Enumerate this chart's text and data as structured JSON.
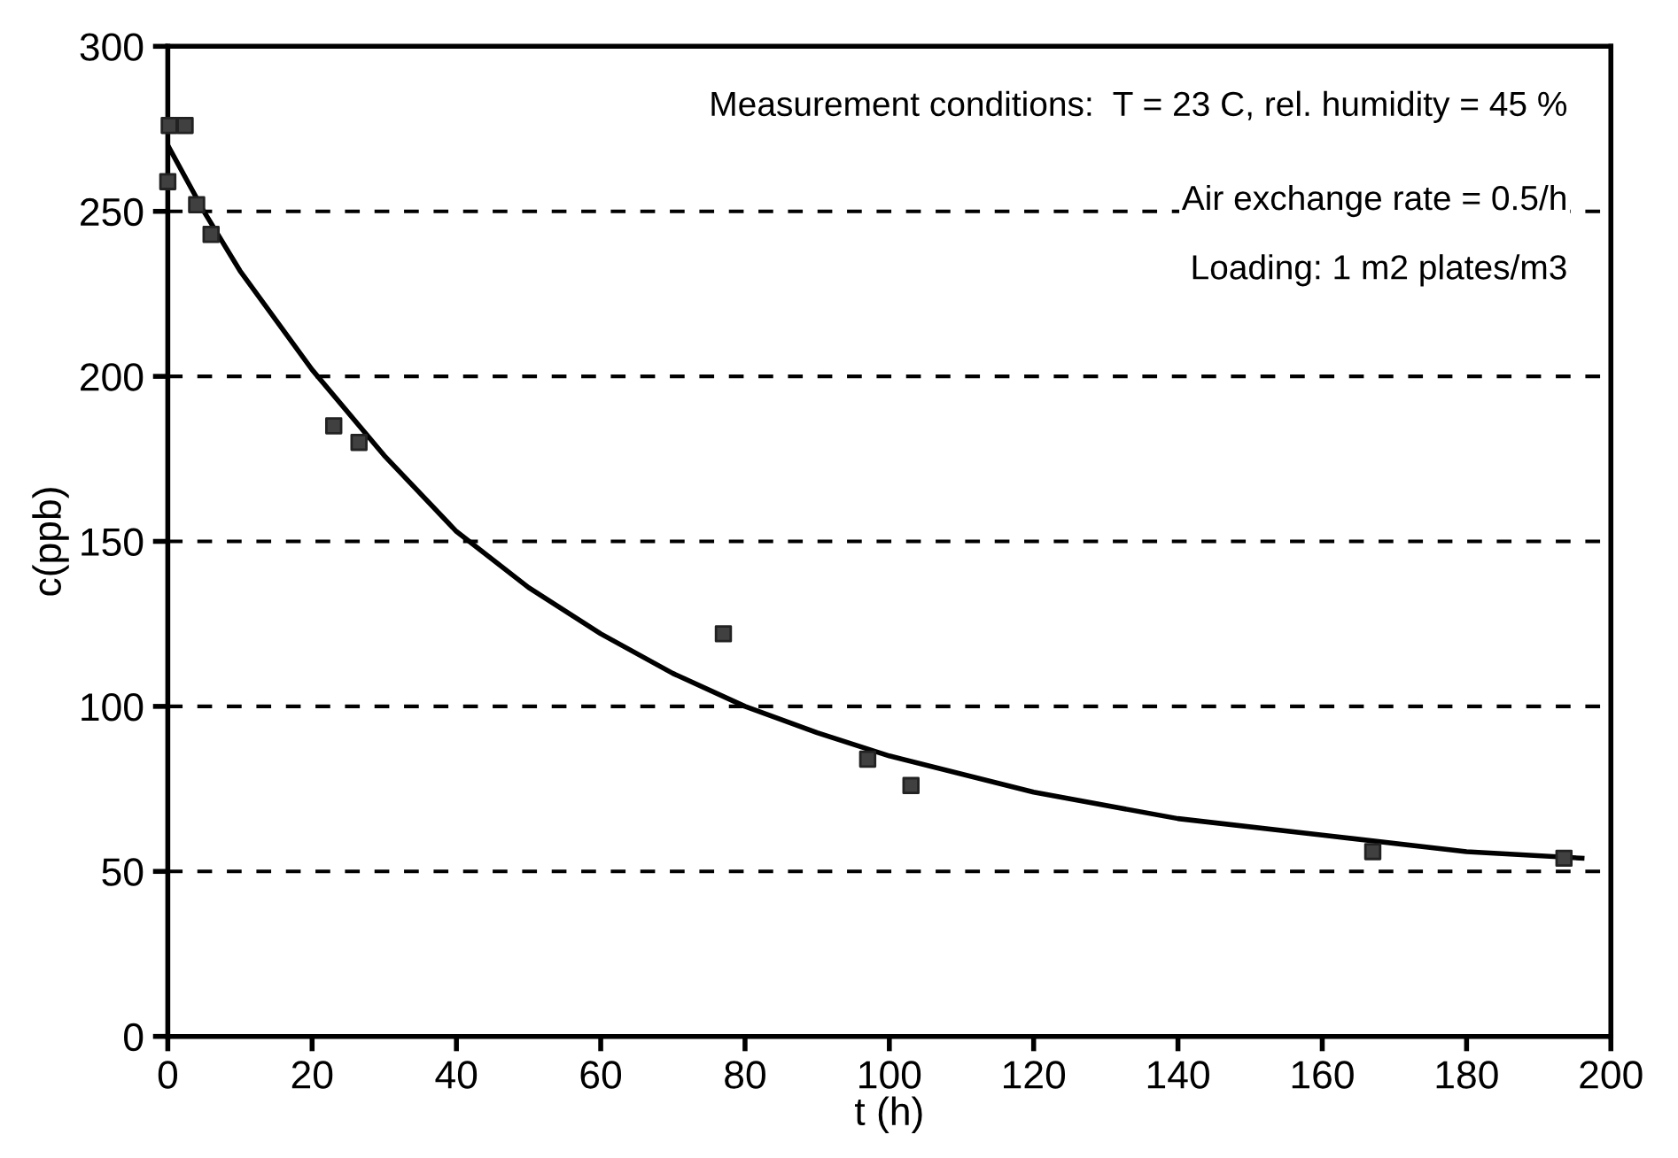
{
  "chart_data": {
    "type": "scatter",
    "xlabel": "t (h)",
    "ylabel": "c(ppb)",
    "xlim": [
      0,
      200
    ],
    "ylim": [
      0,
      300
    ],
    "xticks": [
      0,
      20,
      40,
      60,
      80,
      100,
      120,
      140,
      160,
      180,
      200
    ],
    "yticks": [
      0,
      50,
      100,
      150,
      200,
      250,
      300
    ],
    "grid": "y",
    "annotations": [
      "Measurement conditions:  T = 23 C, rel. humidity = 45 %",
      "Air exchange rate = 0.5/h",
      "Loading: 1 m2 plates/m3"
    ],
    "series": [
      {
        "marker": "square",
        "color": "#404040",
        "x": [
          0,
          0.2,
          2.4,
          4,
          6,
          23,
          26.5,
          77,
          97,
          103,
          167,
          193.5
        ],
        "values": [
          259,
          276,
          276,
          252,
          243,
          185,
          180,
          122,
          84,
          76,
          56,
          54
        ]
      },
      {
        "type": "line",
        "marker": "none",
        "color": "#000000",
        "x": [
          0,
          5,
          10,
          20,
          30,
          40,
          50,
          60,
          70,
          80,
          90,
          100,
          120,
          140,
          160,
          180,
          196
        ],
        "values": [
          270,
          250,
          232,
          202,
          176,
          153,
          136,
          122,
          110,
          100,
          92,
          85,
          74,
          66,
          61,
          56,
          54
        ]
      }
    ]
  }
}
